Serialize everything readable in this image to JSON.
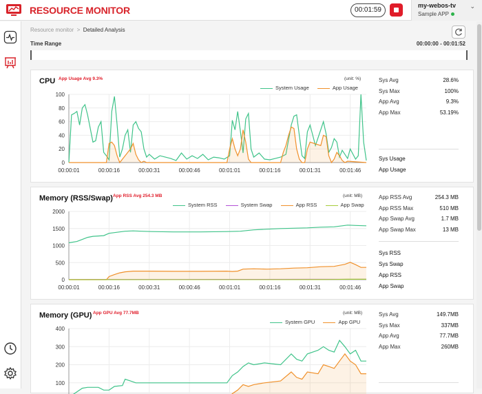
{
  "header": {
    "brand": "RESOURCE MONITOR",
    "timer": "00:01:59",
    "device_name": "my-webos-tv",
    "app_name": "Sample APP"
  },
  "breadcrumb": {
    "root": "Resource monitor",
    "separator": ">",
    "current": "Detailed Analysis"
  },
  "time_range": {
    "label": "Time Range",
    "value": "00:00:00 - 00:01:52"
  },
  "colors": {
    "green": "#3ec389",
    "orange": "#f0902a",
    "purple": "#b34fd6",
    "lime": "#a6cc3a",
    "brand": "#d8232a"
  },
  "icons": [
    "monitor-logo-icon",
    "activity-icon",
    "presentation-chart-icon",
    "history-clock-icon",
    "settings-gear-icon",
    "refresh-icon",
    "chevron-down-icon"
  ],
  "panels": [
    {
      "title": "CPU",
      "avg_label": "App Usage Avg 9.3%",
      "unit": "(unit: %)",
      "legend": [
        "System Usage",
        "App Usage"
      ],
      "stats": [
        {
          "k": "Sys Avg",
          "v": "28.6%"
        },
        {
          "k": "Sys Max",
          "v": "100%"
        },
        {
          "k": "App Avg",
          "v": "9.3%"
        },
        {
          "k": "App Max",
          "v": "53.19%"
        }
      ],
      "selectors": [
        "Sys Usage",
        "App Usage"
      ]
    },
    {
      "title": "Memory (RSS/Swap)",
      "avg_label": "App RSS Avg 254.3 MB",
      "unit": "(unit: MB)",
      "legend": [
        "System RSS",
        "System Swap",
        "App RSS",
        "App Swap"
      ],
      "stats": [
        {
          "k": "App RSS Avg",
          "v": "254.3 MB"
        },
        {
          "k": "App RSS Max",
          "v": "510 MB"
        },
        {
          "k": "App Swap Avg",
          "v": "1.7 MB"
        },
        {
          "k": "App Swap Max",
          "v": "13 MB"
        }
      ],
      "selectors": [
        "Sys RSS",
        "Sys Swap",
        "App RSS",
        "App Swap"
      ]
    },
    {
      "title": "Memory (GPU)",
      "avg_label": "App GPU Avg 77.7MB",
      "unit": "(unit: MB)",
      "legend": [
        "System GPU",
        "App GPU"
      ],
      "stats": [
        {
          "k": "Sys Avg",
          "v": "149.7MB"
        },
        {
          "k": "Sys Max",
          "v": "337MB"
        },
        {
          "k": "App Avg",
          "v": "77.7MB"
        },
        {
          "k": "App Max",
          "v": "260MB"
        }
      ],
      "selectors": []
    }
  ],
  "chart_data": [
    {
      "type": "line",
      "title": "CPU",
      "x_ticks": [
        "00:00:01",
        "00:00:16",
        "00:00:31",
        "00:00:46",
        "00:01:01",
        "00:01:16",
        "00:01:31",
        "00:01:46"
      ],
      "ylim": [
        0,
        100
      ],
      "y_ticks": [
        0,
        20,
        40,
        60,
        80,
        100
      ],
      "xlim": [
        1,
        112
      ],
      "series": [
        {
          "name": "System Usage",
          "color": "#3ec389",
          "area": false,
          "x": [
            1,
            2,
            3,
            4,
            5,
            6,
            7,
            8,
            9,
            10,
            11,
            12,
            13,
            14,
            15,
            16,
            17,
            18,
            19,
            20,
            21,
            22,
            23,
            24,
            25,
            26,
            27,
            28,
            29,
            30,
            31,
            33,
            35,
            37,
            39,
            41,
            43,
            45,
            47,
            49,
            51,
            53,
            55,
            57,
            59,
            61,
            62,
            63,
            64,
            65,
            66,
            67,
            68,
            69,
            70,
            72,
            74,
            76,
            78,
            80,
            82,
            84,
            85,
            86,
            87,
            88,
            89,
            90,
            91,
            93,
            95,
            96,
            97,
            98,
            99,
            100,
            101,
            102,
            103,
            104,
            105,
            106,
            108,
            109,
            110,
            111,
            112
          ],
          "values": [
            0,
            70,
            72,
            75,
            55,
            80,
            85,
            70,
            50,
            30,
            32,
            52,
            60,
            15,
            10,
            4,
            75,
            97,
            55,
            8,
            20,
            40,
            48,
            15,
            55,
            60,
            50,
            45,
            20,
            8,
            12,
            5,
            10,
            8,
            6,
            3,
            14,
            5,
            10,
            6,
            12,
            4,
            8,
            7,
            5,
            10,
            62,
            48,
            75,
            46,
            14,
            64,
            72,
            20,
            8,
            14,
            5,
            4,
            6,
            8,
            12,
            55,
            68,
            70,
            40,
            10,
            6,
            45,
            55,
            25,
            48,
            60,
            42,
            15,
            22,
            35,
            30,
            8,
            18,
            12,
            6,
            20,
            5,
            10,
            100,
            30,
            3
          ]
        },
        {
          "name": "App Usage",
          "color": "#f0902a",
          "area": true,
          "x": [
            1,
            14,
            15,
            16,
            17,
            18,
            19,
            20,
            24,
            25,
            26,
            27,
            28,
            29,
            30,
            59,
            60,
            61,
            62,
            63,
            64,
            65,
            66,
            67,
            68,
            69,
            70,
            80,
            81,
            82,
            83,
            84,
            85,
            86,
            87,
            88,
            89,
            90,
            91,
            95,
            96,
            97,
            98,
            99,
            100,
            101,
            102,
            103,
            104,
            105,
            112
          ],
          "values": [
            0,
            0,
            0,
            28,
            30,
            25,
            10,
            0,
            20,
            28,
            12,
            4,
            0,
            2,
            0,
            0,
            0,
            20,
            35,
            20,
            10,
            20,
            48,
            30,
            5,
            0,
            0,
            0,
            15,
            25,
            40,
            52,
            50,
            20,
            5,
            0,
            0,
            20,
            30,
            25,
            40,
            38,
            10,
            0,
            5,
            15,
            10,
            3,
            0,
            2,
            0
          ]
        }
      ]
    },
    {
      "type": "line",
      "title": "Memory (RSS/Swap)",
      "x_ticks": [
        "00:00:01",
        "00:00:16",
        "00:00:31",
        "00:00:46",
        "00:01:01",
        "00:01:16",
        "00:01:31",
        "00:01:46"
      ],
      "ylim": [
        0,
        2000
      ],
      "y_ticks": [
        0,
        500,
        1000,
        1500,
        2000
      ],
      "xlim": [
        1,
        112
      ],
      "series": [
        {
          "name": "System RSS",
          "color": "#3ec389",
          "area": false,
          "x": [
            1,
            4,
            6,
            8,
            10,
            12,
            14,
            16,
            18,
            20,
            22,
            25,
            28,
            32,
            40,
            50,
            60,
            65,
            70,
            75,
            80,
            85,
            90,
            95,
            100,
            105,
            108,
            112
          ],
          "values": [
            1080,
            1120,
            1180,
            1240,
            1270,
            1280,
            1290,
            1360,
            1380,
            1400,
            1420,
            1430,
            1420,
            1410,
            1400,
            1400,
            1410,
            1420,
            1460,
            1480,
            1500,
            1510,
            1520,
            1540,
            1550,
            1600,
            1590,
            1580
          ]
        },
        {
          "name": "System Swap",
          "color": "#b34fd6",
          "area": false,
          "x": [
            1,
            30,
            60,
            90,
            112
          ],
          "values": [
            5,
            6,
            8,
            10,
            12
          ]
        },
        {
          "name": "App RSS",
          "color": "#f0902a",
          "area": true,
          "x": [
            1,
            15,
            16,
            18,
            20,
            22,
            25,
            30,
            40,
            50,
            60,
            62,
            64,
            66,
            70,
            75,
            80,
            85,
            90,
            95,
            100,
            104,
            106,
            108,
            110,
            112
          ],
          "values": [
            0,
            0,
            90,
            150,
            200,
            230,
            250,
            250,
            245,
            245,
            250,
            240,
            250,
            310,
            320,
            310,
            320,
            340,
            350,
            380,
            390,
            450,
            510,
            440,
            360,
            360
          ]
        },
        {
          "name": "App Swap",
          "color": "#a6cc3a",
          "area": false,
          "x": [
            1,
            95,
            100,
            105,
            112
          ],
          "values": [
            0,
            2,
            6,
            12,
            13
          ]
        }
      ]
    },
    {
      "type": "line",
      "title": "Memory (GPU)",
      "ylim": [
        0,
        400
      ],
      "y_ticks": [
        100,
        200,
        300,
        400
      ],
      "xlim": [
        1,
        112
      ],
      "series": [
        {
          "name": "System GPU",
          "color": "#3ec389",
          "area": false,
          "x": [
            1,
            4,
            6,
            8,
            12,
            14,
            16,
            18,
            21,
            22,
            24,
            26,
            28,
            35,
            45,
            60,
            62,
            64,
            66,
            68,
            70,
            74,
            80,
            84,
            86,
            88,
            90,
            94,
            96,
            98,
            100,
            102,
            104,
            106,
            108,
            110,
            112
          ],
          "values": [
            20,
            50,
            70,
            75,
            75,
            60,
            60,
            80,
            85,
            120,
            110,
            100,
            100,
            100,
            100,
            100,
            140,
            160,
            190,
            210,
            200,
            210,
            200,
            260,
            230,
            220,
            260,
            280,
            300,
            280,
            270,
            335,
            300,
            260,
            280,
            220,
            220
          ]
        },
        {
          "name": "App GPU",
          "color": "#f0902a",
          "area": true,
          "x": [
            1,
            60,
            61,
            62,
            64,
            66,
            68,
            70,
            74,
            80,
            84,
            86,
            88,
            90,
            94,
            96,
            98,
            100,
            102,
            104,
            106,
            108,
            110,
            112
          ],
          "values": [
            0,
            0,
            20,
            40,
            60,
            90,
            80,
            90,
            100,
            110,
            160,
            130,
            120,
            160,
            150,
            200,
            190,
            180,
            220,
            260,
            220,
            200,
            150,
            150
          ]
        }
      ]
    }
  ]
}
